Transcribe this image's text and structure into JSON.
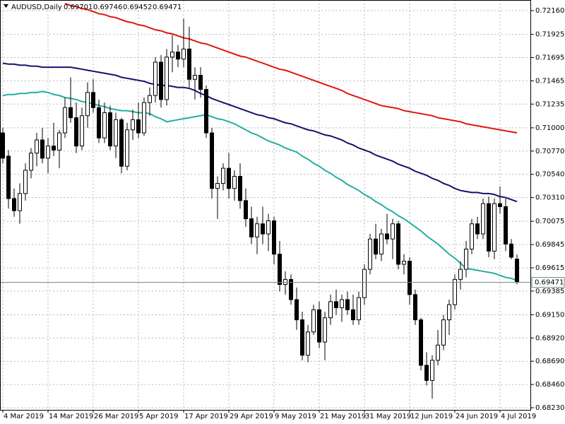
{
  "chart_data": {
    "type": "candlestick",
    "title": "AUDUSD,Daily",
    "categories": [
      "4 Mar 2019",
      null,
      null,
      null,
      null,
      null,
      null,
      null,
      "14 Mar 2019",
      null,
      null,
      null,
      null,
      null,
      null,
      null,
      "26 Mar 2019",
      null,
      null,
      null,
      null,
      null,
      null,
      null,
      "5 Apr 2019",
      null,
      null,
      null,
      null,
      null,
      null,
      null,
      "17 Apr 2019",
      null,
      null,
      null,
      null,
      null,
      null,
      null,
      "29 Apr 2019",
      null,
      null,
      null,
      null,
      null,
      null,
      null,
      "9 May 2019",
      null,
      null,
      null,
      null,
      null,
      null,
      null,
      "21 May 2019",
      null,
      null,
      null,
      null,
      null,
      null,
      null,
      "31 May 2019",
      null,
      null,
      null,
      null,
      null,
      null,
      null,
      "12 Jun 2019",
      null,
      null,
      null,
      null,
      null,
      null,
      null,
      "24 Jun 2019",
      null,
      null,
      null,
      null,
      null,
      null,
      null,
      "4 Jul 2019",
      null,
      null,
      null
    ],
    "ohlc": [
      [
        0.7095,
        0.71,
        0.7065,
        0.707
      ],
      [
        0.7072,
        0.7078,
        0.702,
        0.703
      ],
      [
        0.703,
        0.704,
        0.7012,
        0.7018
      ],
      [
        0.7018,
        0.7045,
        0.7005,
        0.7035
      ],
      [
        0.7035,
        0.7065,
        0.7028,
        0.7058
      ],
      [
        0.7058,
        0.708,
        0.705,
        0.7075
      ],
      [
        0.7075,
        0.7095,
        0.7062,
        0.7088
      ],
      [
        0.7088,
        0.71,
        0.7065,
        0.707
      ],
      [
        0.707,
        0.709,
        0.7055,
        0.7082
      ],
      [
        0.7082,
        0.7105,
        0.7072,
        0.7078
      ],
      [
        0.7078,
        0.7098,
        0.706,
        0.7095
      ],
      [
        0.7095,
        0.713,
        0.709,
        0.712
      ],
      [
        0.712,
        0.715,
        0.7105,
        0.711
      ],
      [
        0.711,
        0.7125,
        0.7075,
        0.7082
      ],
      [
        0.7082,
        0.712,
        0.7078,
        0.7112
      ],
      [
        0.7112,
        0.7145,
        0.71,
        0.7135
      ],
      [
        0.7135,
        0.7148,
        0.7115,
        0.712
      ],
      [
        0.712,
        0.7128,
        0.7085,
        0.709
      ],
      [
        0.709,
        0.7125,
        0.7085,
        0.7115
      ],
      [
        0.7115,
        0.7122,
        0.7078,
        0.7082
      ],
      [
        0.7082,
        0.7115,
        0.707,
        0.7108
      ],
      [
        0.7108,
        0.711,
        0.7055,
        0.7062
      ],
      [
        0.7062,
        0.7105,
        0.7058,
        0.7098
      ],
      [
        0.7098,
        0.7118,
        0.7088,
        0.7108
      ],
      [
        0.7108,
        0.7125,
        0.709,
        0.7095
      ],
      [
        0.7095,
        0.713,
        0.7092,
        0.7125
      ],
      [
        0.7125,
        0.714,
        0.7112,
        0.7132
      ],
      [
        0.7132,
        0.717,
        0.7125,
        0.7165
      ],
      [
        0.7165,
        0.7172,
        0.712,
        0.7128
      ],
      [
        0.7128,
        0.7178,
        0.7122,
        0.717
      ],
      [
        0.717,
        0.7192,
        0.7155,
        0.7175
      ],
      [
        0.7175,
        0.7182,
        0.716,
        0.7168
      ],
      [
        0.7168,
        0.7208,
        0.716,
        0.7178
      ],
      [
        0.7178,
        0.72,
        0.714,
        0.7148
      ],
      [
        0.7148,
        0.716,
        0.7128,
        0.7152
      ],
      [
        0.7152,
        0.716,
        0.713,
        0.7138
      ],
      [
        0.7138,
        0.7142,
        0.709,
        0.7095
      ],
      [
        0.7095,
        0.71,
        0.703,
        0.704
      ],
      [
        0.704,
        0.7052,
        0.701,
        0.7045
      ],
      [
        0.7045,
        0.7065,
        0.7038,
        0.706
      ],
      [
        0.706,
        0.7075,
        0.703,
        0.704
      ],
      [
        0.704,
        0.7058,
        0.7028,
        0.7052
      ],
      [
        0.7052,
        0.7065,
        0.702,
        0.7028
      ],
      [
        0.7028,
        0.704,
        0.7002,
        0.701
      ],
      [
        0.701,
        0.7022,
        0.6985,
        0.6992
      ],
      [
        0.6992,
        0.7012,
        0.6975,
        0.7005
      ],
      [
        0.7005,
        0.7022,
        0.6985,
        0.6995
      ],
      [
        0.6995,
        0.7015,
        0.6978,
        0.7008
      ],
      [
        0.7008,
        0.7012,
        0.6965,
        0.6975
      ],
      [
        0.6975,
        0.6988,
        0.6938,
        0.6945
      ],
      [
        0.6945,
        0.6958,
        0.6935,
        0.695
      ],
      [
        0.695,
        0.6955,
        0.6925,
        0.693
      ],
      [
        0.693,
        0.6942,
        0.69,
        0.691
      ],
      [
        0.691,
        0.6918,
        0.687,
        0.6875
      ],
      [
        0.6875,
        0.6905,
        0.6868,
        0.6898
      ],
      [
        0.6898,
        0.6925,
        0.6895,
        0.692
      ],
      [
        0.692,
        0.6928,
        0.6882,
        0.6888
      ],
      [
        0.6888,
        0.6918,
        0.687,
        0.6912
      ],
      [
        0.6912,
        0.6935,
        0.6905,
        0.6928
      ],
      [
        0.6928,
        0.694,
        0.6915,
        0.6922
      ],
      [
        0.6922,
        0.6935,
        0.6908,
        0.693
      ],
      [
        0.693,
        0.6938,
        0.6915,
        0.692
      ],
      [
        0.692,
        0.6935,
        0.6905,
        0.691
      ],
      [
        0.691,
        0.6938,
        0.6905,
        0.6932
      ],
      [
        0.6932,
        0.6965,
        0.6925,
        0.696
      ],
      [
        0.696,
        0.6995,
        0.6955,
        0.699
      ],
      [
        0.699,
        0.7005,
        0.697,
        0.6975
      ],
      [
        0.6975,
        0.7,
        0.6968,
        0.6995
      ],
      [
        0.6995,
        0.7015,
        0.6985,
        0.699
      ],
      [
        0.699,
        0.701,
        0.697,
        0.7005
      ],
      [
        0.7005,
        0.7008,
        0.696,
        0.6965
      ],
      [
        0.6965,
        0.6975,
        0.6955,
        0.6968
      ],
      [
        0.6968,
        0.6972,
        0.6925,
        0.6935
      ],
      [
        0.6935,
        0.694,
        0.6905,
        0.691
      ],
      [
        0.691,
        0.6912,
        0.686,
        0.6865
      ],
      [
        0.6865,
        0.6878,
        0.6845,
        0.685
      ],
      [
        0.685,
        0.6875,
        0.6832,
        0.687
      ],
      [
        0.687,
        0.69,
        0.6865,
        0.6885
      ],
      [
        0.6885,
        0.6915,
        0.688,
        0.691
      ],
      [
        0.691,
        0.693,
        0.6895,
        0.6925
      ],
      [
        0.6925,
        0.6955,
        0.692,
        0.695
      ],
      [
        0.695,
        0.6968,
        0.694,
        0.696
      ],
      [
        0.696,
        0.6988,
        0.6952,
        0.698
      ],
      [
        0.698,
        0.701,
        0.6975,
        0.7005
      ],
      [
        0.7005,
        0.7012,
        0.699,
        0.6995
      ],
      [
        0.6995,
        0.703,
        0.699,
        0.7025
      ],
      [
        0.7025,
        0.7032,
        0.6972,
        0.6978
      ],
      [
        0.6978,
        0.703,
        0.697,
        0.7025
      ],
      [
        0.7025,
        0.7042,
        0.7015,
        0.7022
      ],
      [
        0.7022,
        0.703,
        0.6978,
        0.6985
      ],
      [
        0.6985,
        0.699,
        0.697,
        0.6972
      ],
      [
        0.69701,
        0.69746,
        0.69452,
        0.69471
      ]
    ],
    "series": [
      {
        "color": "#e0150f",
        "values": [
          null,
          null,
          null,
          null,
          null,
          null,
          null,
          null,
          null,
          null,
          null,
          0.7223,
          0.7221,
          0.722,
          0.7218,
          0.7217,
          0.7215,
          0.7213,
          0.7212,
          0.721,
          0.7209,
          0.7207,
          0.7205,
          0.7204,
          0.7202,
          0.7201,
          0.7199,
          0.7197,
          0.7196,
          0.7194,
          0.7193,
          0.7191,
          0.7189,
          0.7188,
          0.7186,
          0.7184,
          0.7183,
          0.7181,
          0.7179,
          0.7177,
          0.7175,
          0.7173,
          0.7171,
          0.717,
          0.7168,
          0.7166,
          0.7164,
          0.7162,
          0.716,
          0.7158,
          0.7157,
          0.7155,
          0.7153,
          0.7151,
          0.7149,
          0.7147,
          0.7145,
          0.7143,
          0.7141,
          0.7139,
          0.7137,
          0.7134,
          0.7132,
          0.713,
          0.7128,
          0.7126,
          0.7124,
          0.7122,
          0.7121,
          0.712,
          0.7119,
          0.7117,
          0.7116,
          0.7115,
          0.7114,
          0.7113,
          0.7112,
          0.711,
          0.7109,
          0.7108,
          0.7107,
          0.7106,
          0.7104,
          0.7103,
          0.7102,
          0.7101,
          0.71,
          0.7099,
          0.7098,
          0.7097,
          0.7096,
          0.7095
        ]
      },
      {
        "color": "#12136b",
        "values": [
          0.7164,
          0.7163,
          0.7163,
          0.7162,
          0.7162,
          0.7161,
          0.7161,
          0.716,
          0.716,
          0.716,
          0.716,
          0.716,
          0.716,
          0.7159,
          0.7158,
          0.7157,
          0.7156,
          0.7155,
          0.7154,
          0.7153,
          0.7152,
          0.715,
          0.7149,
          0.7148,
          0.7147,
          0.7146,
          0.7144,
          0.7143,
          0.7142,
          0.7142,
          0.7141,
          0.714,
          0.714,
          0.7139,
          0.7137,
          0.7134,
          0.7132,
          0.7129,
          0.7127,
          0.7125,
          0.7123,
          0.7121,
          0.7119,
          0.7117,
          0.7115,
          0.7113,
          0.7112,
          0.711,
          0.7109,
          0.7107,
          0.7105,
          0.7104,
          0.7102,
          0.71,
          0.7098,
          0.7097,
          0.7095,
          0.7093,
          0.7092,
          0.709,
          0.7088,
          0.7085,
          0.7083,
          0.708,
          0.7078,
          0.7076,
          0.7073,
          0.7071,
          0.7069,
          0.7067,
          0.7064,
          0.7062,
          0.706,
          0.7057,
          0.7055,
          0.7053,
          0.705,
          0.7048,
          0.7045,
          0.7043,
          0.704,
          0.7038,
          0.7037,
          0.7036,
          0.7036,
          0.7035,
          0.7035,
          0.7034,
          0.7032,
          0.7031,
          0.7029,
          0.7027
        ]
      },
      {
        "color": "#26ada0",
        "values": [
          0.7132,
          0.7133,
          0.7133,
          0.7134,
          0.7134,
          0.7135,
          0.7135,
          0.7136,
          0.7135,
          0.7133,
          0.7132,
          0.713,
          0.7129,
          0.7128,
          0.7126,
          0.7125,
          0.7124,
          0.7122,
          0.7121,
          0.7119,
          0.7118,
          0.7117,
          0.7117,
          0.7116,
          0.7115,
          0.7115,
          0.7114,
          0.7111,
          0.7109,
          0.7106,
          0.7107,
          0.7108,
          0.7109,
          0.711,
          0.7111,
          0.7112,
          0.7113,
          0.7111,
          0.7109,
          0.7108,
          0.7106,
          0.7104,
          0.7101,
          0.7098,
          0.7095,
          0.7093,
          0.709,
          0.7087,
          0.7085,
          0.7083,
          0.708,
          0.7078,
          0.7076,
          0.7072,
          0.7069,
          0.7065,
          0.7062,
          0.7058,
          0.7055,
          0.7051,
          0.7048,
          0.7044,
          0.7041,
          0.7038,
          0.7034,
          0.7031,
          0.7027,
          0.7024,
          0.702,
          0.7017,
          0.7013,
          0.701,
          0.7006,
          0.7002,
          0.6998,
          0.6993,
          0.6989,
          0.6985,
          0.698,
          0.6975,
          0.6971,
          0.6966,
          0.6961,
          0.696,
          0.6959,
          0.6958,
          0.6957,
          0.6956,
          0.6954,
          0.6952,
          0.6951,
          0.6949
        ]
      }
    ],
    "ylim": [
      0.68209,
      0.72265
    ],
    "yticks": [
      {
        "value": 0.7216,
        "label": "0.72160"
      },
      0.71925,
      0.71695,
      0.71465,
      0.71235,
      {
        "value": 0.71,
        "label": "0.71000"
      },
      {
        "value": 0.7077,
        "label": "0.70770"
      },
      {
        "value": 0.7054,
        "label": "0.70540"
      },
      {
        "value": 0.7031,
        "label": "0.70310"
      },
      0.70075,
      0.69845,
      0.69615,
      0.69385,
      {
        "value": 0.6915,
        "label": "0.69150"
      },
      {
        "value": 0.6892,
        "label": "0.68920"
      },
      {
        "value": 0.6869,
        "label": "0.68690"
      },
      {
        "value": 0.6846,
        "label": "0.68460"
      },
      {
        "value": 0.6823,
        "label": "0.68230"
      }
    ],
    "grid": true,
    "bull_color": "#ffffff",
    "bear_color": "#000000"
  }
}
